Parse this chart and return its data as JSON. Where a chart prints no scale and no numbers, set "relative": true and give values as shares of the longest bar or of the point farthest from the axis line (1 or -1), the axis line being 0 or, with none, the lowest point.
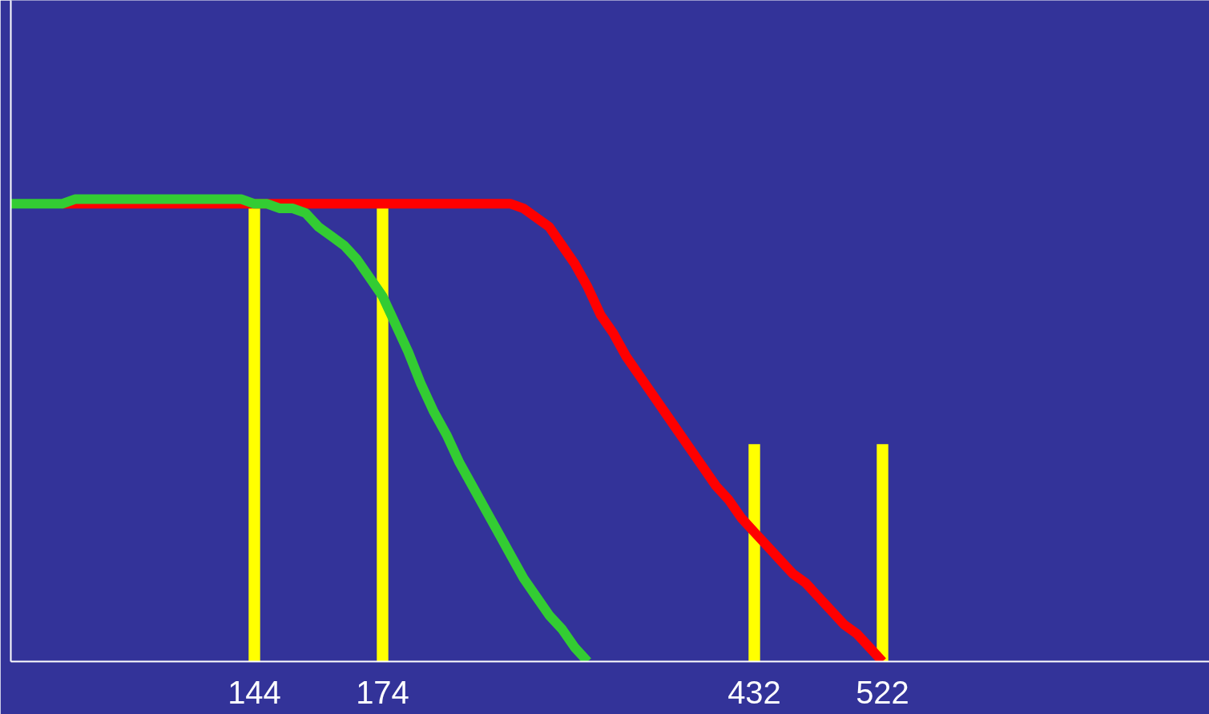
{
  "chart_data": {
    "type": "line",
    "relative": true,
    "grid": false,
    "legend": false,
    "tick_labels": "x",
    "marker": "none",
    "line_style": "solid",
    "categories": [
      null,
      null,
      null,
      null,
      null,
      null,
      null,
      null,
      null,
      null,
      null,
      null,
      null,
      null,
      null,
      null,
      null,
      null,
      null,
      "144",
      null,
      null,
      null,
      null,
      null,
      null,
      null,
      null,
      null,
      "174",
      null,
      null,
      null,
      null,
      null,
      null,
      null,
      null,
      null,
      null,
      null,
      null,
      null,
      null,
      null,
      null,
      null,
      null,
      null,
      null,
      null,
      null,
      null,
      null,
      null,
      null,
      null,
      null,
      "432",
      null,
      null,
      null,
      null,
      null,
      null,
      null,
      null,
      null,
      "522",
      null,
      null,
      null,
      null,
      null,
      null,
      null,
      null,
      null,
      null,
      null,
      null,
      null,
      null,
      null,
      null,
      null,
      null,
      null,
      null,
      null,
      null,
      null,
      null,
      null
    ],
    "series": [
      {
        "type": "bar",
        "color": "#ffff00",
        "values": [
          null,
          null,
          null,
          null,
          null,
          null,
          null,
          null,
          null,
          null,
          null,
          null,
          null,
          null,
          null,
          null,
          null,
          null,
          null,
          0.98,
          null,
          null,
          null,
          null,
          null,
          null,
          null,
          null,
          null,
          0.98,
          null,
          null,
          null,
          null,
          null,
          null,
          null,
          null,
          null,
          null,
          null,
          null,
          null,
          null,
          null,
          null,
          null,
          null,
          null,
          null,
          null,
          null,
          null,
          null,
          null,
          null,
          null,
          null,
          0.47,
          null,
          null,
          null,
          null,
          null,
          null,
          null,
          null,
          null,
          0.47,
          null,
          null,
          null,
          null,
          null,
          null,
          null,
          null,
          null,
          null,
          null,
          null,
          null,
          null,
          null,
          null,
          null,
          null,
          null,
          null,
          null,
          null,
          null,
          null,
          null
        ]
      },
      {
        "color": "#ff0000",
        "values": [
          null,
          null,
          null,
          null,
          0.99,
          0.99,
          0.99,
          0.99,
          0.99,
          0.99,
          0.99,
          0.99,
          0.99,
          0.99,
          0.99,
          0.99,
          0.99,
          0.99,
          0.99,
          0.99,
          0.99,
          0.99,
          0.99,
          0.99,
          0.99,
          0.99,
          0.99,
          0.99,
          0.99,
          0.99,
          0.99,
          0.99,
          0.99,
          0.99,
          0.99,
          0.99,
          0.99,
          0.99,
          0.99,
          0.99,
          0.98,
          0.96,
          0.94,
          0.9,
          0.86,
          0.81,
          0.75,
          0.71,
          0.66,
          0.62,
          0.58,
          0.54,
          0.5,
          0.46,
          0.42,
          0.38,
          0.35,
          0.31,
          0.28,
          0.25,
          0.22,
          0.19,
          0.17,
          0.14,
          0.11,
          0.08,
          0.06,
          0.03,
          0,
          null,
          null,
          null,
          null,
          null,
          null,
          null,
          null,
          null,
          null,
          null,
          null,
          null,
          null,
          null,
          null,
          null,
          null,
          null,
          null,
          null,
          null,
          null,
          null,
          null
        ]
      },
      {
        "color": "#33cc33",
        "values": [
          0.99,
          0.99,
          0.99,
          0.99,
          0.99,
          1,
          1,
          1,
          1,
          1,
          1,
          1,
          1,
          1,
          1,
          1,
          1,
          1,
          1,
          0.99,
          0.99,
          0.98,
          0.98,
          0.97,
          0.94,
          0.92,
          0.9,
          0.87,
          0.83,
          0.79,
          0.73,
          0.67,
          0.6,
          0.54,
          0.49,
          0.43,
          0.38,
          0.33,
          0.28,
          0.23,
          0.18,
          0.14,
          0.1,
          0.07,
          0.03,
          0,
          null,
          null,
          null,
          null,
          null,
          null,
          null,
          null,
          null,
          null,
          null,
          null,
          null,
          null,
          null,
          null,
          null,
          null,
          null,
          null,
          null,
          null,
          null,
          null,
          null,
          null,
          null,
          null,
          null,
          null,
          null,
          null,
          null,
          null,
          null,
          null,
          null,
          null,
          null,
          null,
          null,
          null,
          null,
          null,
          null,
          null,
          null,
          null
        ]
      }
    ]
  }
}
